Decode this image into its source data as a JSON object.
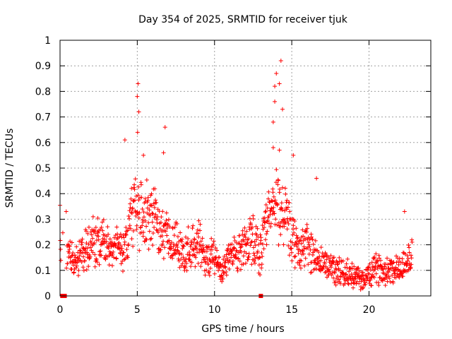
{
  "chart_data": {
    "type": "scatter",
    "title": "Day 354 of 2025, SRMTID for receiver tjuk",
    "xlabel": "GPS time / hours",
    "ylabel": "SRMTID / TECUs",
    "xlim": [
      0,
      24
    ],
    "ylim": [
      0,
      1
    ],
    "x_ticks": [
      0,
      5,
      10,
      15,
      20
    ],
    "y_ticks": [
      0,
      0.1,
      0.2,
      0.3,
      0.4,
      0.5,
      0.6,
      0.7,
      0.8,
      0.9,
      1
    ],
    "grid": true,
    "marker": "+",
    "color": "#ff0000",
    "series": [
      {
        "name": "SRMTID",
        "profile": [
          [
            0.0,
            0.25
          ],
          [
            0.3,
            0.22
          ],
          [
            0.5,
            0.15
          ],
          [
            1.0,
            0.14
          ],
          [
            1.5,
            0.17
          ],
          [
            2.0,
            0.2
          ],
          [
            2.5,
            0.21
          ],
          [
            3.0,
            0.19
          ],
          [
            3.5,
            0.2
          ],
          [
            4.0,
            0.17
          ],
          [
            4.3,
            0.2
          ],
          [
            4.7,
            0.33
          ],
          [
            5.0,
            0.36
          ],
          [
            5.5,
            0.3
          ],
          [
            6.0,
            0.32
          ],
          [
            6.5,
            0.25
          ],
          [
            7.0,
            0.24
          ],
          [
            7.5,
            0.2
          ],
          [
            8.0,
            0.16
          ],
          [
            8.5,
            0.19
          ],
          [
            9.0,
            0.2
          ],
          [
            9.5,
            0.15
          ],
          [
            10.0,
            0.15
          ],
          [
            10.5,
            0.1
          ],
          [
            11.0,
            0.14
          ],
          [
            11.5,
            0.18
          ],
          [
            12.0,
            0.2
          ],
          [
            12.5,
            0.22
          ],
          [
            13.0,
            0.17
          ],
          [
            13.3,
            0.25
          ],
          [
            13.7,
            0.33
          ],
          [
            14.0,
            0.36
          ],
          [
            14.5,
            0.32
          ],
          [
            15.0,
            0.22
          ],
          [
            15.5,
            0.18
          ],
          [
            16.0,
            0.2
          ],
          [
            16.5,
            0.16
          ],
          [
            17.0,
            0.12
          ],
          [
            17.5,
            0.12
          ],
          [
            18.0,
            0.1
          ],
          [
            18.5,
            0.09
          ],
          [
            19.0,
            0.08
          ],
          [
            19.5,
            0.06
          ],
          [
            20.0,
            0.08
          ],
          [
            20.5,
            0.11
          ],
          [
            21.0,
            0.1
          ],
          [
            21.5,
            0.11
          ],
          [
            22.0,
            0.11
          ],
          [
            22.5,
            0.13
          ],
          [
            22.8,
            0.16
          ]
        ],
        "peaks": [
          {
            "x": 5.05,
            "y": 0.83
          },
          {
            "x": 5.0,
            "y": 0.78
          },
          {
            "x": 5.1,
            "y": 0.72
          },
          {
            "x": 5.02,
            "y": 0.64
          },
          {
            "x": 6.8,
            "y": 0.66
          },
          {
            "x": 14.3,
            "y": 0.92
          },
          {
            "x": 14.0,
            "y": 0.87
          },
          {
            "x": 14.2,
            "y": 0.83
          },
          {
            "x": 13.9,
            "y": 0.82
          },
          {
            "x": 14.4,
            "y": 0.73
          },
          {
            "x": 13.8,
            "y": 0.68
          },
          {
            "x": 13.9,
            "y": 0.76
          },
          {
            "x": 4.2,
            "y": 0.61
          },
          {
            "x": 13.8,
            "y": 0.58
          },
          {
            "x": 14.2,
            "y": 0.57
          },
          {
            "x": 6.7,
            "y": 0.56
          },
          {
            "x": 15.1,
            "y": 0.55
          },
          {
            "x": 5.4,
            "y": 0.55
          },
          {
            "x": 16.6,
            "y": 0.46
          },
          {
            "x": 22.3,
            "y": 0.33
          },
          {
            "x": 0.4,
            "y": 0.33
          }
        ],
        "outage_markers": [
          {
            "x": 0.15,
            "y": 0.0
          },
          {
            "x": 0.3,
            "y": 0.0
          },
          {
            "x": 13.0,
            "y": 0.0
          }
        ]
      }
    ]
  }
}
